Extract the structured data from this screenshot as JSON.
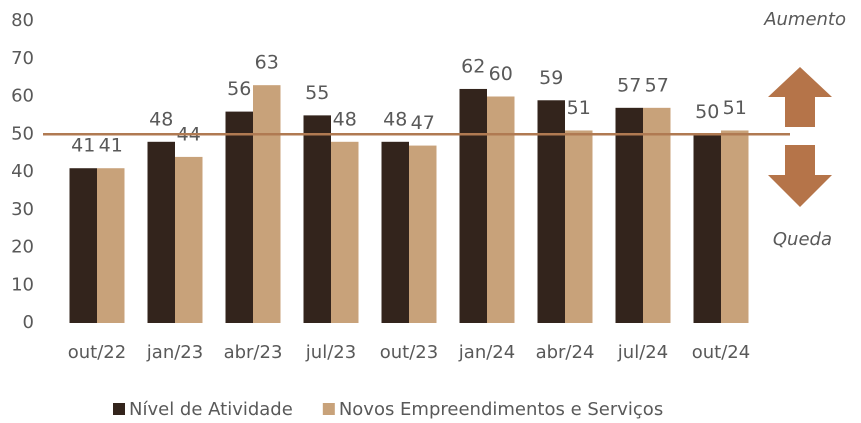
{
  "chart_data": {
    "type": "bar",
    "categories": [
      "out/22",
      "jan/23",
      "abr/23",
      "jul/23",
      "out/23",
      "jan/24",
      "abr/24",
      "jul/24",
      "out/24"
    ],
    "series": [
      {
        "name": "Nível de Atividade",
        "color": "#33241c",
        "values": [
          41,
          48,
          56,
          55,
          48,
          62,
          59,
          57,
          50
        ]
      },
      {
        "name": "Novos Empreendimentos e Serviços",
        "color": "#c8a27a",
        "values": [
          41,
          44,
          63,
          48,
          47,
          60,
          51,
          57,
          51
        ]
      }
    ],
    "ylim": [
      0,
      80
    ],
    "yticks": [
      0,
      10,
      20,
      30,
      40,
      50,
      60,
      70,
      80
    ],
    "grid": false,
    "reference_line": {
      "value": 50,
      "color": "#b07a52"
    },
    "annotations": [
      "Aumento",
      "Queda"
    ],
    "legend": "bottom"
  }
}
